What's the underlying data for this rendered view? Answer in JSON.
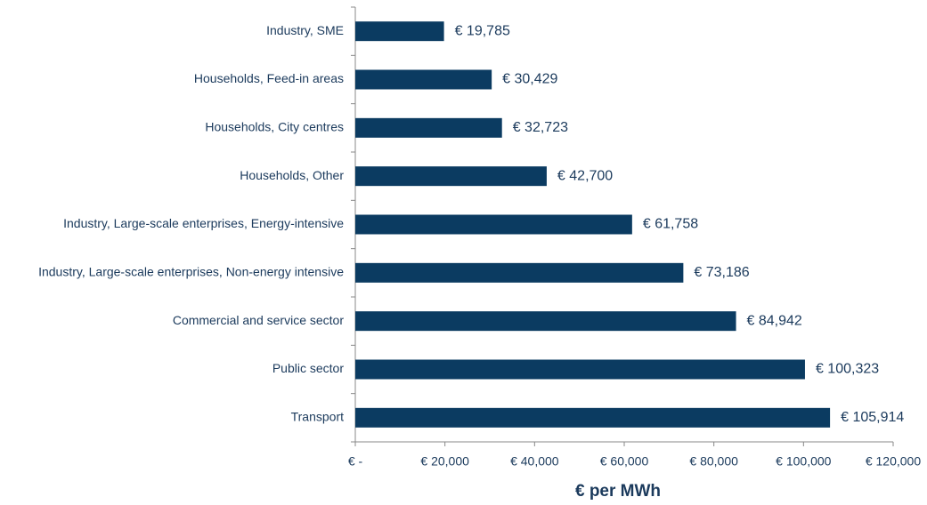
{
  "chart_data": {
    "type": "barh",
    "x_label": "€ per MWh",
    "categories": [
      "Industry, SME",
      "Households, Feed-in areas",
      "Households, City centres",
      "Households, Other",
      "Industry, Large-scale enterprises, Energy-intensive",
      "Industry, Large-scale enterprises, Non-energy intensive",
      "Commercial and service sector",
      "Public sector",
      "Transport"
    ],
    "values": [
      19785,
      30429,
      32723,
      42700,
      61758,
      73186,
      84942,
      100323,
      105914
    ],
    "value_labels": [
      "€ 19,785",
      "€ 30,429",
      "€ 32,723",
      "€ 42,700",
      "€ 61,758",
      "€ 73,186",
      "€ 84,942",
      "€ 100,323",
      "€ 105,914"
    ],
    "color": "#0b3b61",
    "xlim": [
      0,
      120000
    ],
    "xticks": [
      {
        "value": 0,
        "label": "€ -"
      },
      {
        "value": 20000,
        "label": "€ 20,000"
      },
      {
        "value": 40000,
        "label": "€ 40,000"
      },
      {
        "value": 60000,
        "label": "€ 60,000"
      },
      {
        "value": 80000,
        "label": "€ 80,000"
      },
      {
        "value": 100000,
        "label": "€ 100,000"
      },
      {
        "value": 120000,
        "label": "€ 120,000"
      }
    ],
    "grid": false
  }
}
